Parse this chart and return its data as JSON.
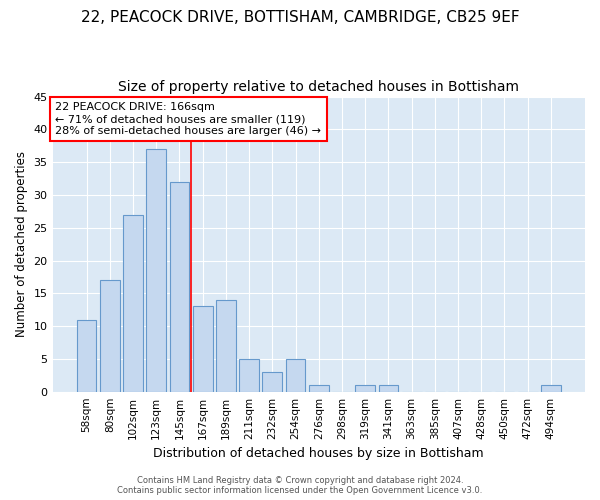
{
  "title_line1": "22, PEACOCK DRIVE, BOTTISHAM, CAMBRIDGE, CB25 9EF",
  "title_line2": "Size of property relative to detached houses in Bottisham",
  "xlabel": "Distribution of detached houses by size in Bottisham",
  "ylabel": "Number of detached properties",
  "categories": [
    "58sqm",
    "80sqm",
    "102sqm",
    "123sqm",
    "145sqm",
    "167sqm",
    "189sqm",
    "211sqm",
    "232sqm",
    "254sqm",
    "276sqm",
    "298sqm",
    "319sqm",
    "341sqm",
    "363sqm",
    "385sqm",
    "407sqm",
    "428sqm",
    "450sqm",
    "472sqm",
    "494sqm"
  ],
  "values": [
    11,
    17,
    27,
    37,
    32,
    13,
    14,
    5,
    3,
    5,
    1,
    0,
    1,
    1,
    0,
    0,
    0,
    0,
    0,
    0,
    1
  ],
  "bar_color": "#c5d8ef",
  "bar_edge_color": "#6699cc",
  "red_line_x": 5,
  "annotation_text": "22 PEACOCK DRIVE: 166sqm\n← 71% of detached houses are smaller (119)\n28% of semi-detached houses are larger (46) →",
  "annotation_box_color": "white",
  "annotation_box_edge": "red",
  "ylim": [
    0,
    45
  ],
  "yticks": [
    0,
    5,
    10,
    15,
    20,
    25,
    30,
    35,
    40,
    45
  ],
  "footer_text": "Contains HM Land Registry data © Crown copyright and database right 2024.\nContains public sector information licensed under the Open Government Licence v3.0.",
  "plot_bg_color": "#dce9f5",
  "figure_bg_color": "#ffffff",
  "grid_color": "#ffffff",
  "title_fontsize": 11,
  "subtitle_fontsize": 10,
  "bar_width": 0.85
}
